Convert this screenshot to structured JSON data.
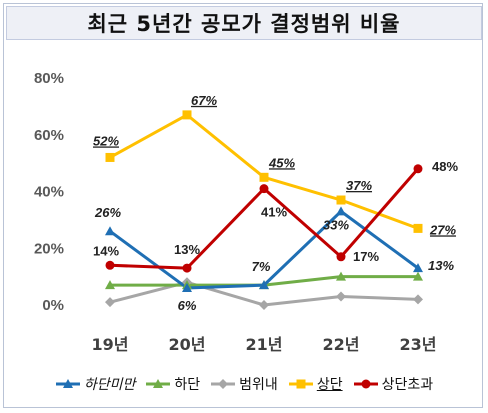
{
  "title": "최근 5년간 공모가 결정범위 비율",
  "chart_data": {
    "type": "line",
    "categories": [
      "19년",
      "20년",
      "21년",
      "22년",
      "23년"
    ],
    "ylim": [
      0,
      80
    ],
    "yticks": [
      "0%",
      "20%",
      "40%",
      "60%",
      "80%"
    ],
    "grid": false,
    "legend_position": "bottom",
    "series": [
      {
        "name": "하단미만",
        "color": "#1f6fb4",
        "marker": "triangle",
        "values": [
          26,
          6,
          7,
          33,
          13
        ],
        "labels": [
          "26%",
          "6%",
          "7%",
          "33%",
          "13%"
        ],
        "label_style": [
          "italic",
          "italic",
          "italic",
          "italic",
          "italic"
        ]
      },
      {
        "name": "하단",
        "color": "#70ad47",
        "marker": "triangle",
        "values": [
          7,
          7,
          7,
          10,
          10
        ],
        "labels": []
      },
      {
        "name": "범위내",
        "color": "#a6a6a6",
        "marker": "diamond",
        "values": [
          1,
          8,
          0,
          3,
          2
        ],
        "labels": []
      },
      {
        "name": "상단",
        "color": "#ffc000",
        "marker": "square",
        "values": [
          52,
          67,
          45,
          37,
          27
        ],
        "labels": [
          "52%",
          "67%",
          "45%",
          "37%",
          "27%"
        ],
        "label_style": [
          "italic-underline",
          "italic-underline",
          "italic-underline",
          "italic-underline",
          "italic-underline"
        ]
      },
      {
        "name": "상단초과",
        "color": "#c00000",
        "marker": "circle",
        "values": [
          14,
          13,
          41,
          17,
          48
        ],
        "labels": [
          "14%",
          "13%",
          "41%",
          "17%",
          "48%"
        ],
        "label_style": [
          "normal",
          "normal",
          "normal",
          "normal",
          "normal"
        ]
      }
    ]
  },
  "legend": {
    "items": [
      {
        "label": "하단미만",
        "style": "italic"
      },
      {
        "label": "하단",
        "style": "normal"
      },
      {
        "label": "범위내",
        "style": "normal"
      },
      {
        "label": "상단",
        "style": "underline"
      },
      {
        "label": "상단초과",
        "style": "normal"
      }
    ]
  }
}
